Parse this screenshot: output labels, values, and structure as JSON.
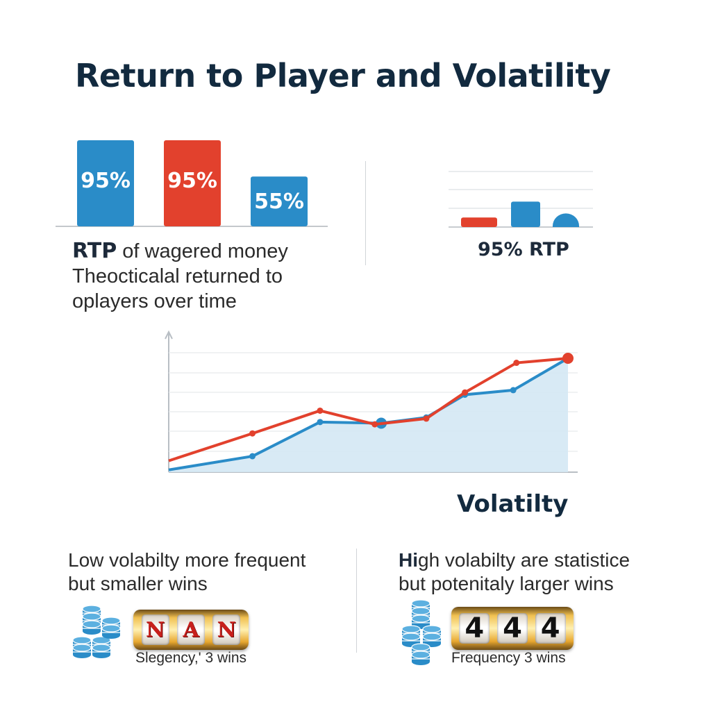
{
  "title": "Return to Player and Volatility",
  "rtp": {
    "description_bold": "RTP",
    "description_rest": " of wagered money",
    "description_line2": "Theocticalal returned to",
    "description_line3": "oplayers over time",
    "caption": "95% RTP"
  },
  "volatility": {
    "title": "Volatilty",
    "low": {
      "line1": "Low volabilty more frequent",
      "line2": "but smaller wins",
      "reel_symbols": [
        "N",
        "A",
        "N"
      ],
      "caption": "Slegency,' 3 wins"
    },
    "high": {
      "line1_bold": "Hi",
      "line1_rest": "gh volabilty are statistice",
      "line2": "but potenitaly larger wins",
      "reel_symbols": [
        "4",
        "4",
        "4"
      ],
      "caption": "Frequency 3 wins"
    }
  },
  "colors": {
    "blue": "#2a8cc8",
    "red": "#e2412d",
    "area": "#d4e8f4",
    "grid": "#dcdfe3",
    "coin": "#2a8cc8"
  },
  "chart_data": [
    {
      "type": "bar",
      "categories": [
        "",
        "",
        ""
      ],
      "values": [
        95,
        95,
        55
      ],
      "data_labels": [
        "95%",
        "95%",
        "55%"
      ],
      "colors": [
        "#2a8cc8",
        "#e2412d",
        "#2a8cc8"
      ],
      "ylim": [
        0,
        100
      ]
    },
    {
      "type": "bar",
      "categories": [
        "",
        "",
        ""
      ],
      "values": [
        12,
        32,
        18
      ],
      "colors": [
        "#e2412d",
        "#2a8cc8",
        "#2a8cc8"
      ],
      "last_rounded": true,
      "ylim": [
        0,
        70
      ]
    },
    {
      "type": "line",
      "x": [
        0,
        1,
        2,
        3,
        4,
        5,
        6,
        7,
        8
      ],
      "ylim": [
        0,
        100
      ],
      "series": [
        {
          "color": "#e2412d",
          "values": [
            10,
            34,
            54,
            42,
            47,
            70,
            96,
            100
          ],
          "x": [
            0,
            1.3,
            2.35,
            3.2,
            4,
            4.6,
            5.4,
            6.2
          ]
        },
        {
          "color": "#2a8cc8",
          "values": [
            2,
            14,
            44,
            43,
            48,
            68,
            72,
            100
          ],
          "x": [
            0,
            1.3,
            2.35,
            3.3,
            4,
            4.6,
            5.35,
            6.2
          ]
        }
      ]
    }
  ]
}
